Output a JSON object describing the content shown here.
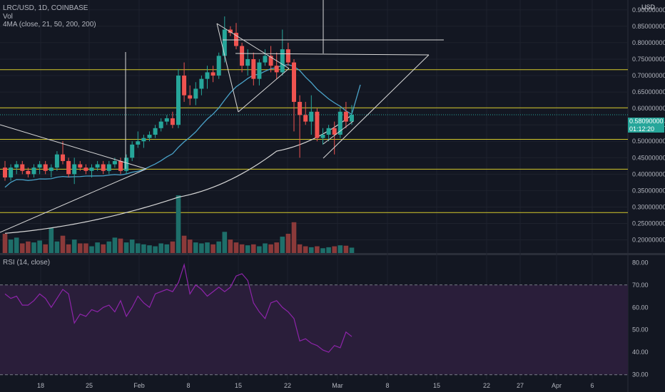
{
  "header": {
    "symbol_line": "LRC/USD, 1D, COINBASE",
    "vol_label": "Vol",
    "ma_label": "4MA (close, 21, 50, 200, 200)",
    "rsi_label": "RSI (14, close)",
    "scale_currency": "USD"
  },
  "price_tag": {
    "price": "0.58090000",
    "countdown": "01:12:20",
    "color": "#26a69a"
  },
  "colors": {
    "background": "#131722",
    "up": "#26a69a",
    "down": "#ef5350",
    "vol_up": "#1e6f6a",
    "vol_down": "#8b3a3a",
    "ma21": "#2962ff",
    "ma50": "#4aa3c9",
    "ma200": "#d7d7d7",
    "horizontal_levels": "#d4c82a",
    "trendlines": "#d9d9d9",
    "rsi_line": "#8e24aa",
    "rsi_band": "#2a1e3a"
  },
  "chart_data": [
    {
      "type": "candlestick",
      "title": "LRC/USD, 1D, COINBASE",
      "x_tick_labels": [
        "18",
        "25",
        "Feb",
        "8",
        "15",
        "22",
        "Mar",
        "8",
        "15",
        "22",
        "27",
        "Apr",
        "6"
      ],
      "y_tick_labels": [
        "0.20000000",
        "0.25000000",
        "0.30000000",
        "0.35000000",
        "0.40000000",
        "0.45000000",
        "0.50000000",
        "0.55000000",
        "0.60000000",
        "0.65000000",
        "0.70000000",
        "0.75000000",
        "0.80000000",
        "0.85000000",
        "0.90000000"
      ],
      "ylim": [
        0.16,
        0.93
      ],
      "ohlc": [
        [
          0.42,
          0.44,
          0.38,
          0.39
        ],
        [
          0.39,
          0.43,
          0.38,
          0.42
        ],
        [
          0.42,
          0.44,
          0.4,
          0.43
        ],
        [
          0.43,
          0.44,
          0.4,
          0.41
        ],
        [
          0.41,
          0.42,
          0.39,
          0.4
        ],
        [
          0.4,
          0.43,
          0.39,
          0.42
        ],
        [
          0.42,
          0.44,
          0.4,
          0.43
        ],
        [
          0.43,
          0.44,
          0.4,
          0.41
        ],
        [
          0.41,
          0.43,
          0.39,
          0.42
        ],
        [
          0.42,
          0.47,
          0.41,
          0.46
        ],
        [
          0.46,
          0.5,
          0.43,
          0.44
        ],
        [
          0.44,
          0.45,
          0.39,
          0.4
        ],
        [
          0.4,
          0.45,
          0.37,
          0.43
        ],
        [
          0.43,
          0.44,
          0.41,
          0.42
        ],
        [
          0.42,
          0.43,
          0.4,
          0.41
        ],
        [
          0.41,
          0.43,
          0.39,
          0.42
        ],
        [
          0.42,
          0.44,
          0.41,
          0.43
        ],
        [
          0.43,
          0.44,
          0.4,
          0.41
        ],
        [
          0.41,
          0.44,
          0.4,
          0.43
        ],
        [
          0.43,
          0.45,
          0.42,
          0.44
        ],
        [
          0.44,
          0.45,
          0.4,
          0.41
        ],
        [
          0.41,
          0.46,
          0.4,
          0.45
        ],
        [
          0.45,
          0.5,
          0.44,
          0.49
        ],
        [
          0.49,
          0.53,
          0.48,
          0.5
        ],
        [
          0.5,
          0.52,
          0.48,
          0.51
        ],
        [
          0.51,
          0.53,
          0.5,
          0.52
        ],
        [
          0.52,
          0.55,
          0.51,
          0.54
        ],
        [
          0.54,
          0.57,
          0.53,
          0.56
        ],
        [
          0.56,
          0.58,
          0.55,
          0.57
        ],
        [
          0.57,
          0.59,
          0.54,
          0.55
        ],
        [
          0.55,
          0.72,
          0.54,
          0.7
        ],
        [
          0.7,
          0.74,
          0.62,
          0.64
        ],
        [
          0.64,
          0.67,
          0.61,
          0.63
        ],
        [
          0.63,
          0.68,
          0.61,
          0.66
        ],
        [
          0.66,
          0.7,
          0.64,
          0.69
        ],
        [
          0.69,
          0.73,
          0.66,
          0.71
        ],
        [
          0.71,
          0.73,
          0.68,
          0.7
        ],
        [
          0.7,
          0.77,
          0.69,
          0.76
        ],
        [
          0.76,
          0.88,
          0.74,
          0.84
        ],
        [
          0.84,
          0.85,
          0.82,
          0.83
        ],
        [
          0.83,
          0.86,
          0.78,
          0.79
        ],
        [
          0.79,
          0.8,
          0.71,
          0.73
        ],
        [
          0.73,
          0.78,
          0.7,
          0.75
        ],
        [
          0.75,
          0.77,
          0.67,
          0.69
        ],
        [
          0.69,
          0.75,
          0.67,
          0.74
        ],
        [
          0.74,
          0.78,
          0.73,
          0.76
        ],
        [
          0.76,
          0.79,
          0.71,
          0.73
        ],
        [
          0.73,
          0.77,
          0.69,
          0.71
        ],
        [
          0.71,
          0.84,
          0.7,
          0.78
        ],
        [
          0.78,
          0.8,
          0.73,
          0.74
        ],
        [
          0.74,
          0.75,
          0.53,
          0.62
        ],
        [
          0.62,
          0.64,
          0.45,
          0.58
        ],
        [
          0.58,
          0.62,
          0.55,
          0.56
        ],
        [
          0.56,
          0.64,
          0.52,
          0.59
        ],
        [
          0.59,
          0.6,
          0.5,
          0.51
        ],
        [
          0.51,
          0.54,
          0.49,
          0.52
        ],
        [
          0.52,
          0.55,
          0.5,
          0.54
        ],
        [
          0.54,
          0.56,
          0.46,
          0.52
        ],
        [
          0.52,
          0.6,
          0.51,
          0.59
        ],
        [
          0.59,
          0.62,
          0.54,
          0.56
        ],
        [
          0.56,
          0.61,
          0.55,
          0.581
        ]
      ],
      "volume_rel": [
        1.0,
        0.7,
        0.8,
        0.5,
        0.6,
        0.55,
        0.65,
        0.45,
        1.3,
        0.6,
        0.9,
        0.45,
        0.7,
        0.5,
        0.5,
        0.35,
        0.55,
        0.45,
        0.6,
        0.8,
        0.75,
        0.55,
        0.7,
        0.5,
        0.45,
        0.4,
        0.35,
        0.5,
        0.45,
        0.6,
        3.0,
        0.9,
        0.7,
        0.55,
        0.5,
        0.55,
        0.45,
        0.6,
        1.1,
        0.7,
        0.55,
        0.45,
        0.4,
        0.45,
        0.35,
        0.5,
        0.45,
        0.55,
        0.85,
        1.0,
        1.6,
        0.45,
        0.35,
        0.3,
        0.35,
        0.25,
        0.3,
        0.35,
        0.4,
        0.38,
        0.28
      ],
      "moving_averages": {
        "ma21_end": 0.672,
        "ma200_anchors": [
          [
            0,
            0.22
          ],
          [
            30,
            0.33
          ],
          [
            47,
            0.47
          ],
          [
            60,
            0.58
          ]
        ]
      },
      "horizontal_levels": [
        0.718,
        0.602,
        0.506,
        0.415,
        0.283
      ],
      "current_price": 0.5809
    },
    {
      "type": "line",
      "title": "RSI (14, close)",
      "y_tick_labels": [
        "30.00",
        "40.00",
        "50.00",
        "60.00",
        "70.00",
        "80.00"
      ],
      "ylim": [
        28,
        82
      ],
      "bands": [
        30,
        70
      ],
      "values": [
        66,
        64,
        65,
        61,
        61,
        63,
        66,
        64,
        60,
        64,
        68,
        66,
        53,
        57,
        56,
        59,
        58,
        60,
        61,
        58,
        63,
        56,
        60,
        65,
        62,
        60,
        66,
        67,
        68,
        67,
        71,
        79,
        66,
        70,
        68,
        65,
        67,
        69,
        67,
        69,
        74,
        75,
        72,
        62,
        58,
        55,
        62,
        63,
        60,
        58,
        55,
        45,
        46,
        44,
        43,
        41,
        40,
        43,
        42,
        49,
        47
      ]
    }
  ]
}
